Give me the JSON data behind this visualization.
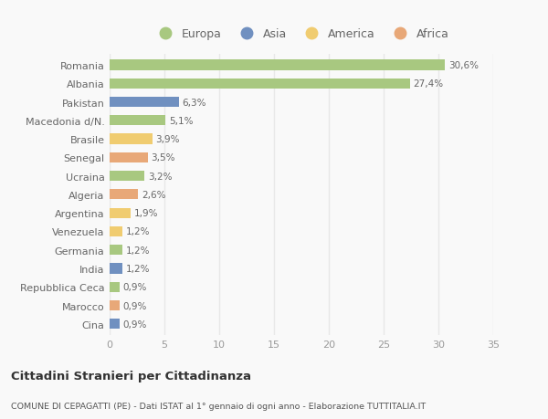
{
  "countries": [
    "Romania",
    "Albania",
    "Pakistan",
    "Macedonia d/N.",
    "Brasile",
    "Senegal",
    "Ucraina",
    "Algeria",
    "Argentina",
    "Venezuela",
    "Germania",
    "India",
    "Repubblica Ceca",
    "Marocco",
    "Cina"
  ],
  "values": [
    30.6,
    27.4,
    6.3,
    5.1,
    3.9,
    3.5,
    3.2,
    2.6,
    1.9,
    1.2,
    1.2,
    1.2,
    0.9,
    0.9,
    0.9
  ],
  "labels": [
    "30,6%",
    "27,4%",
    "6,3%",
    "5,1%",
    "3,9%",
    "3,5%",
    "3,2%",
    "2,6%",
    "1,9%",
    "1,2%",
    "1,2%",
    "1,2%",
    "0,9%",
    "0,9%",
    "0,9%"
  ],
  "continents": [
    "Europa",
    "Europa",
    "Asia",
    "Europa",
    "America",
    "Africa",
    "Europa",
    "Africa",
    "America",
    "America",
    "Europa",
    "Asia",
    "Europa",
    "Africa",
    "Asia"
  ],
  "continent_colors": {
    "Europa": "#a8c880",
    "Asia": "#7090c0",
    "America": "#f0cc70",
    "Africa": "#e8a878"
  },
  "legend_order": [
    "Europa",
    "Asia",
    "America",
    "Africa"
  ],
  "title": "Cittadini Stranieri per Cittadinanza",
  "subtitle": "COMUNE DI CEPAGATTI (PE) - Dati ISTAT al 1° gennaio di ogni anno - Elaborazione TUTTITALIA.IT",
  "xlim": [
    0,
    35
  ],
  "xticks": [
    0,
    5,
    10,
    15,
    20,
    25,
    30,
    35
  ],
  "bg_color": "#f9f9f9",
  "grid_color": "#e8e8e8",
  "bar_height": 0.55,
  "label_fontsize": 7.5,
  "tick_fontsize": 8,
  "label_color": "#666666",
  "tick_color": "#999999"
}
